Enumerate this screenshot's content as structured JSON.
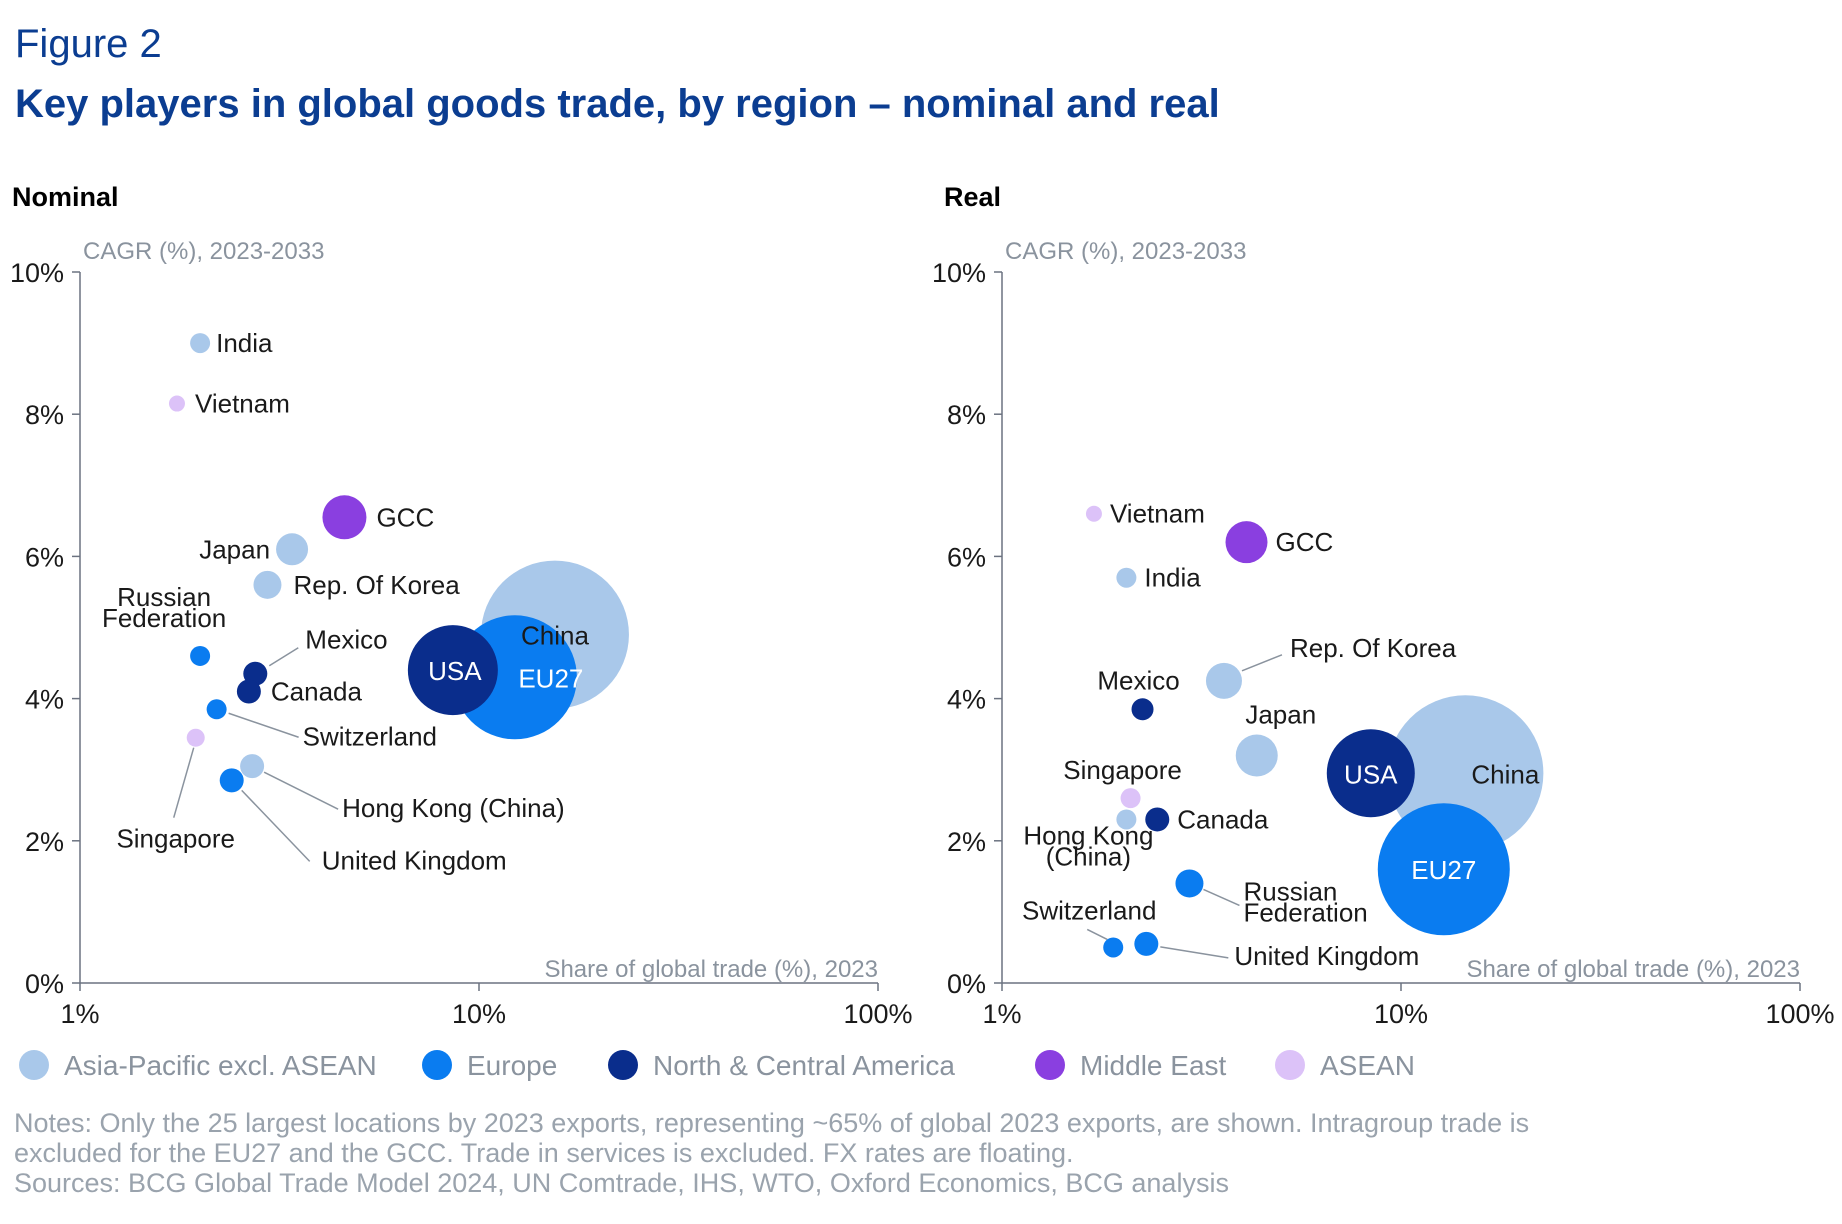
{
  "figure": {
    "label": "Figure 2",
    "title": "Key players in global goods trade, by region – nominal and real"
  },
  "colors": {
    "Asia-Pacific excl. ASEAN": "#a9c8ea",
    "Europe": "#0a7cf0",
    "North & Central America": "#0a2d8c",
    "Middle East": "#8a3fe0",
    "ASEAN": "#dcc2f8"
  },
  "legend": [
    {
      "label": "Asia-Pacific excl. ASEAN"
    },
    {
      "label": "Europe"
    },
    {
      "label": "North & Central America"
    },
    {
      "label": "Middle East"
    },
    {
      "label": "ASEAN"
    }
  ],
  "notes": {
    "line1": "Notes: Only the 25 largest locations by 2023 exports, representing ~65% of global 2023 exports, are shown. Intragroup trade is",
    "line2": "excluded for the EU27 and the GCC. Trade in services is excluded. FX rates are floating.",
    "sources": "Sources: BCG Global Trade Model 2024, UN Comtrade, IHS, WTO, Oxford Economics, BCG analysis"
  },
  "chart_data": [
    {
      "type": "scatter",
      "panel_title": "Nominal",
      "ylabel": "CAGR (%), 2023-2033",
      "xlabel": "Share of global trade (%), 2023",
      "x_scale": "log",
      "xlim": [
        1,
        100
      ],
      "ylim": [
        0,
        10
      ],
      "x_ticks": [
        "1%",
        "10%",
        "100%"
      ],
      "y_ticks": [
        "0%",
        "2%",
        "4%",
        "6%",
        "8%",
        "10%"
      ],
      "points": [
        {
          "name": "China",
          "region": "Asia-Pacific excl. ASEAN",
          "x": 15.5,
          "y": 4.9,
          "r": 74,
          "label_inside": true
        },
        {
          "name": "EU27",
          "region": "Europe",
          "x": 12.3,
          "y": 4.3,
          "r": 62,
          "label_inside": true
        },
        {
          "name": "USA",
          "region": "North & Central America",
          "x": 8.6,
          "y": 4.4,
          "r": 45,
          "label_inside": true
        },
        {
          "name": "India",
          "region": "Asia-Pacific excl. ASEAN",
          "x": 2.0,
          "y": 9.0,
          "r": 10
        },
        {
          "name": "Vietnam",
          "region": "ASEAN",
          "x": 1.75,
          "y": 8.15,
          "r": 8
        },
        {
          "name": "GCC",
          "region": "Middle East",
          "x": 4.6,
          "y": 6.55,
          "r": 22
        },
        {
          "name": "Japan",
          "region": "Asia-Pacific excl. ASEAN",
          "x": 3.4,
          "y": 6.1,
          "r": 16
        },
        {
          "name": "Rep. Of Korea",
          "region": "Asia-Pacific excl. ASEAN",
          "x": 2.95,
          "y": 5.6,
          "r": 14
        },
        {
          "name": "Russian Federation",
          "region": "Europe",
          "x": 2.0,
          "y": 4.6,
          "r": 10
        },
        {
          "name": "Mexico",
          "region": "North & Central America",
          "x": 2.75,
          "y": 4.35,
          "r": 12
        },
        {
          "name": "Canada",
          "region": "North & Central America",
          "x": 2.65,
          "y": 4.1,
          "r": 12
        },
        {
          "name": "Switzerland",
          "region": "Europe",
          "x": 2.2,
          "y": 3.85,
          "r": 10
        },
        {
          "name": "Singapore",
          "region": "ASEAN",
          "x": 1.95,
          "y": 3.45,
          "r": 9
        },
        {
          "name": "Hong Kong (China)",
          "region": "Asia-Pacific excl. ASEAN",
          "x": 2.7,
          "y": 3.05,
          "r": 12
        },
        {
          "name": "United Kingdom",
          "region": "Europe",
          "x": 2.4,
          "y": 2.85,
          "r": 12
        }
      ]
    },
    {
      "type": "scatter",
      "panel_title": "Real",
      "ylabel": "CAGR (%), 2023-2033",
      "xlabel": "Share of global trade (%), 2023",
      "x_scale": "log",
      "xlim": [
        1,
        100
      ],
      "ylim": [
        0,
        10
      ],
      "x_ticks": [
        "1%",
        "10%",
        "100%"
      ],
      "y_ticks": [
        "0%",
        "2%",
        "4%",
        "6%",
        "8%",
        "10%"
      ],
      "points": [
        {
          "name": "China",
          "region": "Asia-Pacific excl. ASEAN",
          "x": 14.5,
          "y": 2.95,
          "r": 78,
          "label_inside": true
        },
        {
          "name": "EU27",
          "region": "Europe",
          "x": 12.8,
          "y": 1.6,
          "r": 66,
          "label_inside": true
        },
        {
          "name": "USA",
          "region": "North & Central America",
          "x": 8.4,
          "y": 2.95,
          "r": 44,
          "label_inside": true
        },
        {
          "name": "Vietnam",
          "region": "ASEAN",
          "x": 1.7,
          "y": 6.6,
          "r": 8
        },
        {
          "name": "GCC",
          "region": "Middle East",
          "x": 4.1,
          "y": 6.2,
          "r": 21
        },
        {
          "name": "India",
          "region": "Asia-Pacific excl. ASEAN",
          "x": 2.05,
          "y": 5.7,
          "r": 10
        },
        {
          "name": "Rep. Of Korea",
          "region": "Asia-Pacific excl. ASEAN",
          "x": 3.6,
          "y": 4.25,
          "r": 18
        },
        {
          "name": "Mexico",
          "region": "North & Central America",
          "x": 2.25,
          "y": 3.85,
          "r": 11
        },
        {
          "name": "Japan",
          "region": "Asia-Pacific excl. ASEAN",
          "x": 4.35,
          "y": 3.2,
          "r": 21
        },
        {
          "name": "Singapore",
          "region": "ASEAN",
          "x": 2.1,
          "y": 2.6,
          "r": 10
        },
        {
          "name": "Canada",
          "region": "North & Central America",
          "x": 2.45,
          "y": 2.3,
          "r": 12
        },
        {
          "name": "Hong Kong (China)",
          "region": "Asia-Pacific excl. ASEAN",
          "x": 2.05,
          "y": 2.3,
          "r": 10
        },
        {
          "name": "Russian Federation",
          "region": "Europe",
          "x": 2.95,
          "y": 1.4,
          "r": 14
        },
        {
          "name": "Switzerland",
          "region": "Europe",
          "x": 1.9,
          "y": 0.5,
          "r": 10
        },
        {
          "name": "United Kingdom",
          "region": "Europe",
          "x": 2.3,
          "y": 0.55,
          "r": 12
        }
      ]
    }
  ]
}
